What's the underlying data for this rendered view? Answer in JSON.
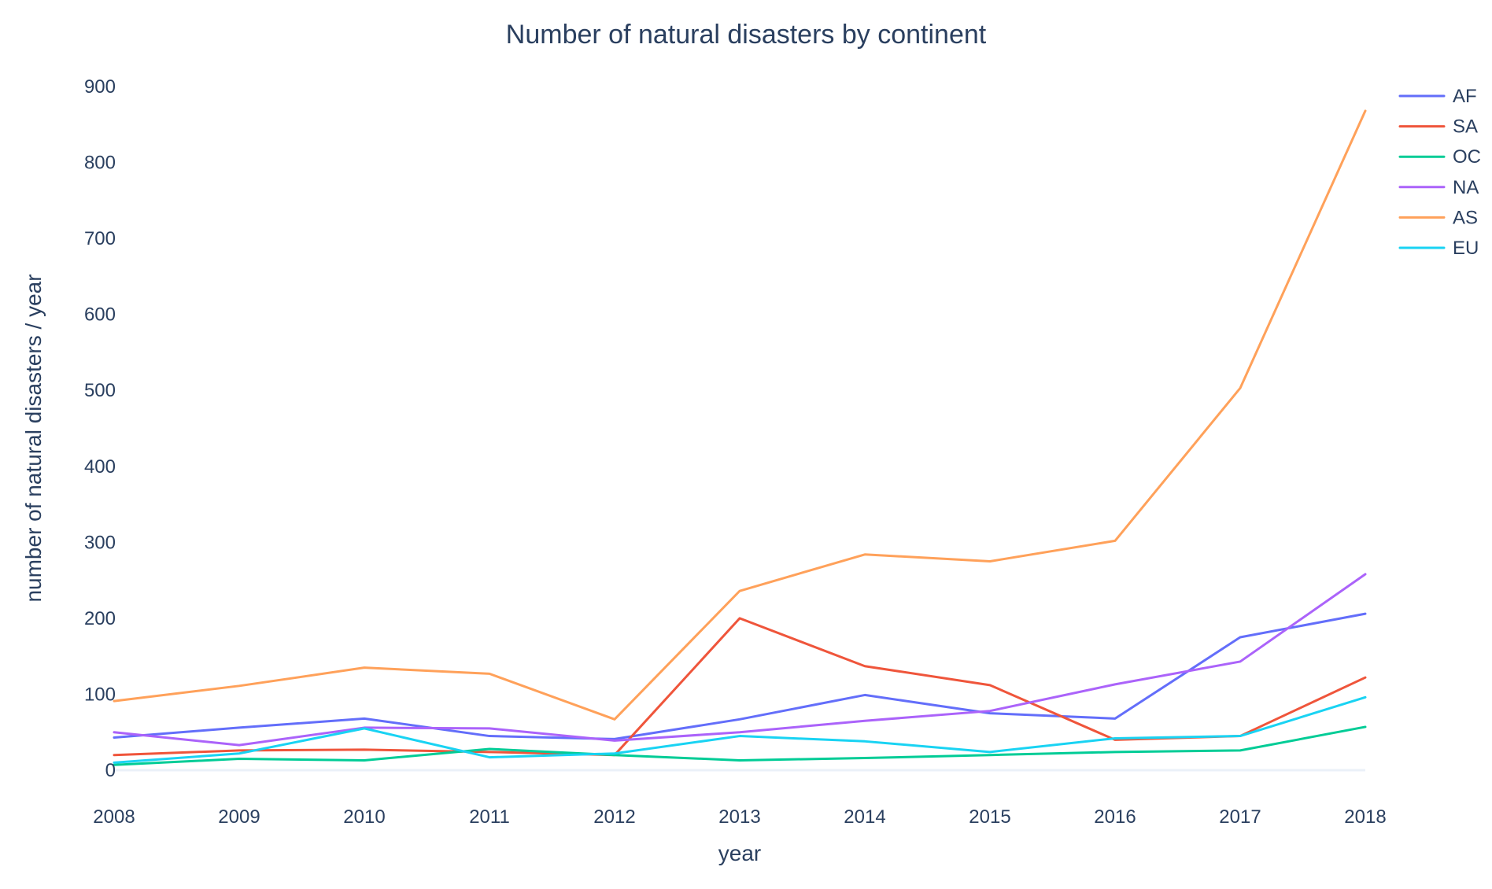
{
  "chart_data": {
    "type": "line",
    "title": "Number of natural disasters by continent",
    "xlabel": "year",
    "ylabel": "number of natural disasters / year",
    "x": [
      2008,
      2009,
      2010,
      2011,
      2012,
      2013,
      2014,
      2015,
      2016,
      2017,
      2018
    ],
    "xlim": [
      2008,
      2018
    ],
    "ylim": [
      0,
      900
    ],
    "x_ticks": [
      "2008",
      "2009",
      "2010",
      "2011",
      "2012",
      "2013",
      "2014",
      "2015",
      "2016",
      "2017",
      "2018"
    ],
    "y_ticks": [
      "0",
      "100",
      "200",
      "300",
      "400",
      "500",
      "600",
      "700",
      "800",
      "900"
    ],
    "grid": false,
    "legend_position": "top-right",
    "series": [
      {
        "name": "AF",
        "color": "#636efa",
        "values": [
          43,
          56,
          68,
          45,
          41,
          67,
          99,
          75,
          68,
          175,
          206
        ]
      },
      {
        "name": "SA",
        "color": "#ef553b",
        "values": [
          20,
          26,
          27,
          24,
          20,
          200,
          137,
          112,
          40,
          45,
          122
        ]
      },
      {
        "name": "OC",
        "color": "#00cc96",
        "values": [
          7,
          15,
          13,
          28,
          20,
          13,
          16,
          20,
          24,
          26,
          57
        ]
      },
      {
        "name": "NA",
        "color": "#ab63fa",
        "values": [
          50,
          33,
          56,
          55,
          39,
          50,
          65,
          78,
          113,
          143,
          258
        ]
      },
      {
        "name": "AS",
        "color": "#ffa15a",
        "values": [
          91,
          111,
          135,
          127,
          67,
          236,
          284,
          275,
          302,
          503,
          868
        ]
      },
      {
        "name": "EU",
        "color": "#19d3f3",
        "values": [
          10,
          22,
          55,
          17,
          22,
          45,
          38,
          24,
          42,
          45,
          96
        ]
      }
    ]
  }
}
